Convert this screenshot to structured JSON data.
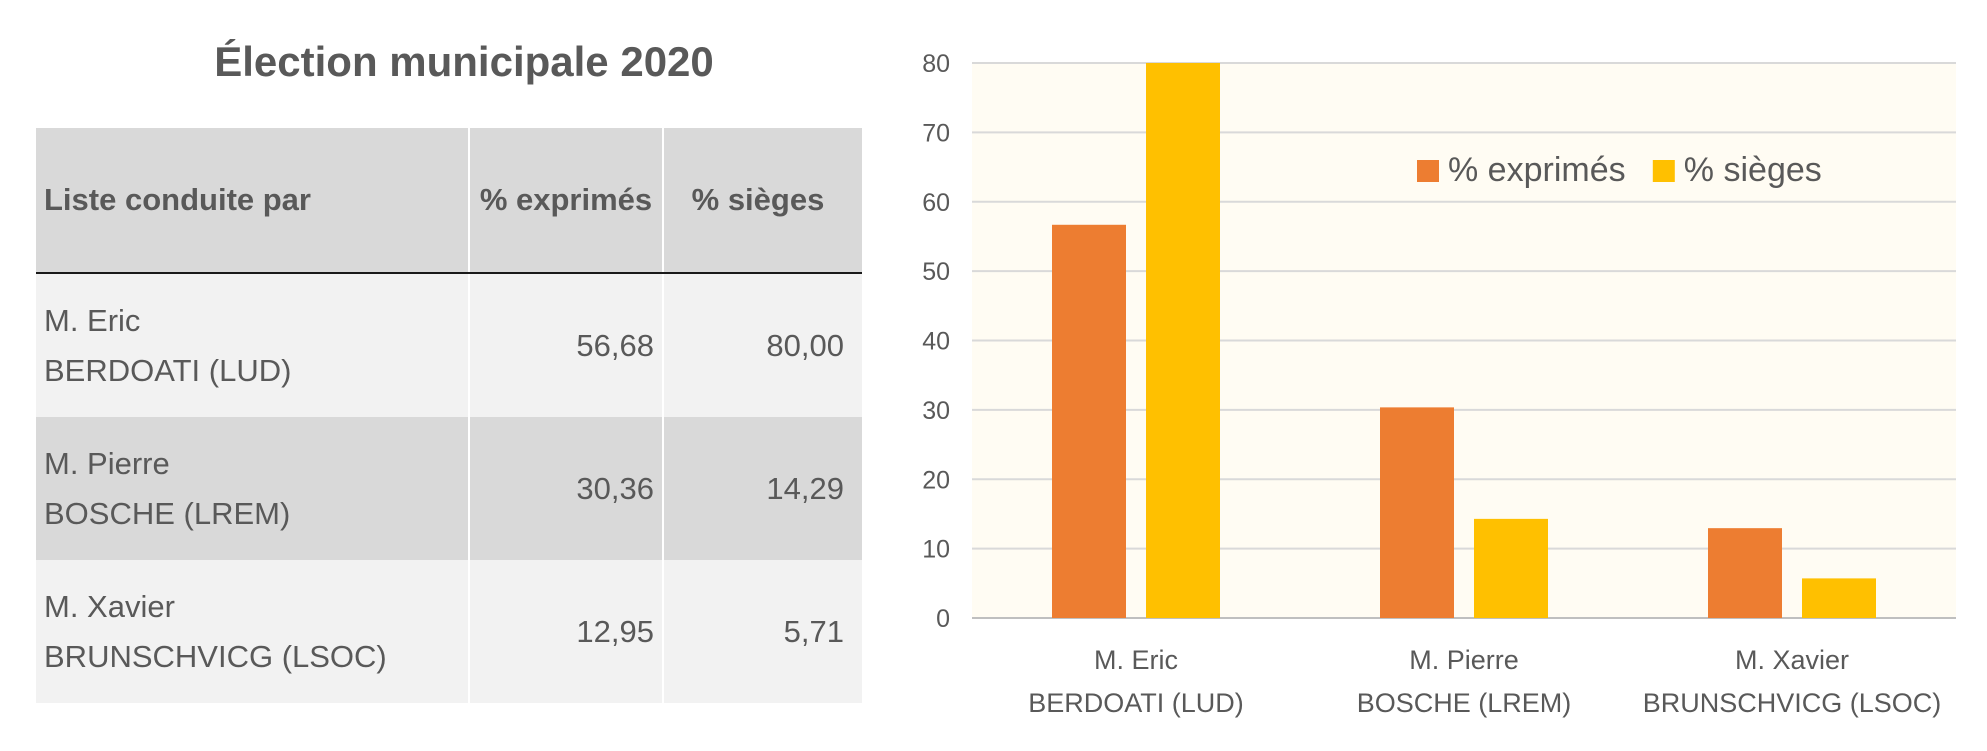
{
  "title": "Élection municipale 2020",
  "table": {
    "headers": [
      "Liste conduite par",
      "% exprimés",
      "% sièges"
    ],
    "rows": [
      {
        "name_line1": "M. Eric",
        "name_line2": "BERDOATI (LUD)",
        "exprimes": "56,68",
        "sieges": "80,00"
      },
      {
        "name_line1": "M. Pierre",
        "name_line2": "BOSCHE (LREM)",
        "exprimes": "30,36",
        "sieges": "14,29"
      },
      {
        "name_line1": "M. Xavier",
        "name_line2": "BRUNSCHVICG (LSOC)",
        "exprimes": "12,95",
        "sieges": "5,71"
      }
    ]
  },
  "chart_data": {
    "type": "bar",
    "categories": [
      [
        "M. Eric",
        "BERDOATI (LUD)"
      ],
      [
        "M. Pierre",
        "BOSCHE (LREM)"
      ],
      [
        "M. Xavier",
        "BRUNSCHVICG (LSOC)"
      ]
    ],
    "series": [
      {
        "name": "% exprimés",
        "values": [
          56.68,
          30.36,
          12.95
        ],
        "color": "#ed7d31"
      },
      {
        "name": "% sièges",
        "values": [
          80.0,
          14.29,
          5.71
        ],
        "color": "#ffc000"
      }
    ],
    "ylim": [
      0,
      80
    ],
    "yticks": [
      0,
      10,
      20,
      30,
      40,
      50,
      60,
      70,
      80
    ],
    "grid": true,
    "legend": "top-right",
    "plot_background": "#fffcf3"
  }
}
